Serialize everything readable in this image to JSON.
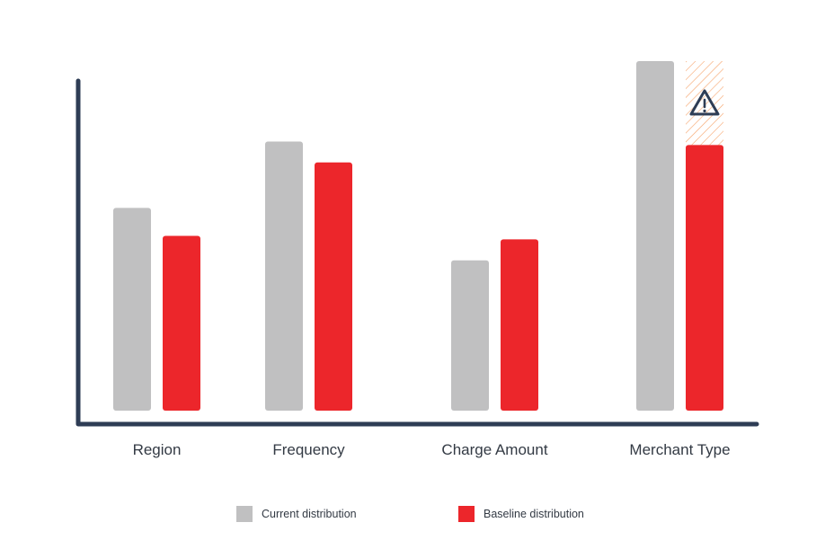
{
  "chart_data": {
    "type": "bar",
    "categories": [
      "Region",
      "Frequency",
      "Charge Amount",
      "Merchant Type"
    ],
    "series": [
      {
        "name": "Current distribution",
        "values": [
          58,
          77,
          43,
          100
        ],
        "color": "#c0c0c1"
      },
      {
        "name": "Baseline distribution",
        "values": [
          50,
          71,
          49,
          76
        ],
        "color": "#ec262b"
      }
    ],
    "ylim": [
      0,
      100
    ],
    "grid": false,
    "legend_position": "bottom",
    "annotations": [
      {
        "category": "Merchant Type",
        "kind": "warning-icon",
        "note_color": "#f6a36a",
        "icon_color": "#2e3d55"
      }
    ],
    "axis_color": "#2e3d55"
  }
}
